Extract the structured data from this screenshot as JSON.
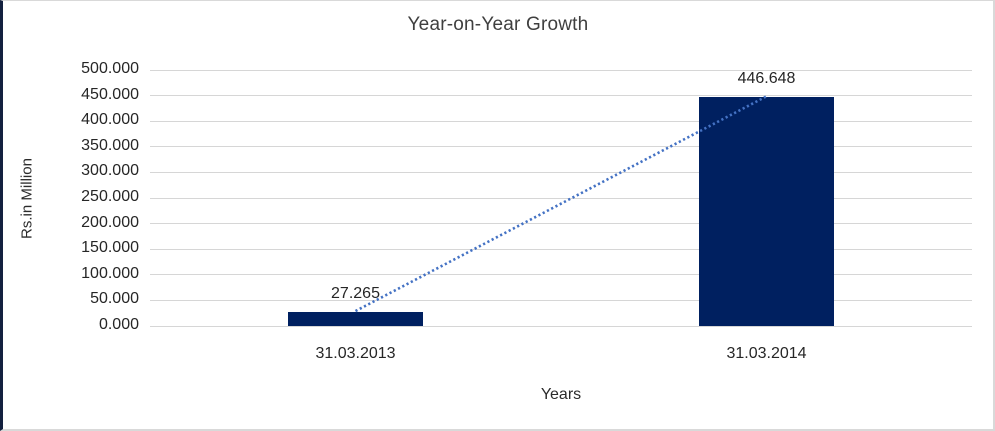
{
  "chart_data": {
    "type": "bar",
    "title": "Year-on-Year Growth",
    "categories": [
      "31.03.2013",
      "31.03.2014"
    ],
    "values": [
      27.265,
      446.648
    ],
    "data_labels": [
      "27.265",
      "446.648"
    ],
    "xlabel": "Years",
    "ylabel": "Rs.in Million",
    "ylim": [
      0,
      500
    ],
    "ytick_step": 50,
    "ytick_labels": [
      "0.000",
      "50.000",
      "100.000",
      "150.000",
      "200.000",
      "250.000",
      "300.000",
      "350.000",
      "400.000",
      "450.000",
      "500.000"
    ],
    "grid": true,
    "legend": "none",
    "bar_color": "#002060",
    "gridline_color": "#d6d6d6",
    "trendline": {
      "type": "linear",
      "style": "dotted",
      "color": "#4472c4"
    }
  }
}
